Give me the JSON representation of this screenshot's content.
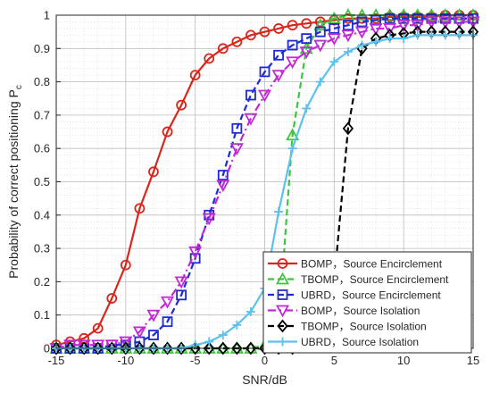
{
  "chart_data": {
    "type": "line",
    "xlabel": "SNR/dB",
    "ylabel": "Probability of correct positioning P",
    "ylabel_subscript": "c",
    "xlim": [
      -15,
      15
    ],
    "ylim": [
      0,
      1
    ],
    "xticks": [
      -15,
      -10,
      -5,
      0,
      5,
      10,
      15
    ],
    "yticks": [
      0,
      0.1,
      0.2,
      0.3,
      0.4,
      0.5,
      0.6,
      0.7,
      0.8,
      0.9,
      1
    ],
    "grid": true,
    "legend_position": "bottom-right",
    "x": [
      -15,
      -14,
      -13,
      -12,
      -11,
      -10,
      -9,
      -8,
      -7,
      -6,
      -5,
      -4,
      -3,
      -2,
      -1,
      0,
      1,
      2,
      3,
      4,
      5,
      6,
      7,
      8,
      9,
      10,
      11,
      12,
      13,
      14,
      15
    ],
    "series": [
      {
        "name": "BOMP，Source Encirclement",
        "color": "#d9261c",
        "marker": "circle",
        "dash": "solid",
        "values": [
          0.01,
          0.02,
          0.03,
          0.06,
          0.15,
          0.25,
          0.42,
          0.53,
          0.65,
          0.73,
          0.82,
          0.87,
          0.9,
          0.92,
          0.94,
          0.95,
          0.96,
          0.97,
          0.975,
          0.98,
          0.985,
          0.99,
          0.99,
          0.99,
          0.995,
          0.995,
          0.995,
          0.995,
          1.0,
          1.0,
          1.0
        ]
      },
      {
        "name": "TBOMP，Source Encirclement",
        "color": "#3ec43e",
        "marker": "triangle",
        "dash": "dash",
        "values": [
          0.0,
          0.0,
          0.0,
          0.0,
          0.0,
          0.0,
          0.0,
          0.0,
          0.0,
          0.0,
          0.0,
          0.0,
          0.0,
          0.0,
          0.0,
          0.01,
          0.06,
          0.64,
          0.9,
          0.97,
          0.99,
          1.0,
          1.0,
          1.0,
          1.0,
          1.0,
          1.0,
          1.0,
          1.0,
          1.0,
          1.0
        ]
      },
      {
        "name": "UBRD，Source Encirclement",
        "color": "#1f2bd4",
        "marker": "square",
        "dash": "dash",
        "values": [
          0.0,
          0.0,
          0.0,
          0.0,
          0.01,
          0.01,
          0.02,
          0.04,
          0.08,
          0.16,
          0.27,
          0.4,
          0.52,
          0.66,
          0.76,
          0.83,
          0.88,
          0.91,
          0.93,
          0.95,
          0.96,
          0.97,
          0.98,
          0.985,
          0.99,
          0.99,
          0.99,
          0.99,
          0.99,
          0.99,
          0.99
        ]
      },
      {
        "name": "BOMP，Source  Isolation",
        "color": "#c228d6",
        "marker": "triangle-down",
        "dash": "dashdot",
        "values": [
          0.0,
          0.01,
          0.01,
          0.01,
          0.01,
          0.02,
          0.05,
          0.1,
          0.14,
          0.2,
          0.29,
          0.39,
          0.49,
          0.6,
          0.69,
          0.76,
          0.82,
          0.86,
          0.89,
          0.91,
          0.93,
          0.94,
          0.95,
          0.96,
          0.96,
          0.97,
          0.97,
          0.98,
          0.98,
          0.98,
          0.98
        ]
      },
      {
        "name": "TBOMP，Source  Isolation",
        "color": "#000000",
        "marker": "diamond",
        "dash": "dash",
        "values": [
          0.0,
          0.0,
          0.0,
          0.0,
          0.0,
          0.0,
          0.0,
          0.0,
          0.0,
          0.0,
          0.0,
          0.0,
          0.0,
          0.0,
          0.0,
          0.0,
          0.0,
          0.0,
          0.01,
          0.04,
          0.2,
          0.66,
          0.9,
          0.93,
          0.94,
          0.945,
          0.95,
          0.95,
          0.95,
          0.95,
          0.95
        ]
      },
      {
        "name": "UBRD，Source  Isolation",
        "color": "#5bc1ee",
        "marker": "plus",
        "dash": "solid",
        "values": [
          0.0,
          0.0,
          0.0,
          0.0,
          0.0,
          0.0,
          0.0,
          0.0,
          0.0,
          0.0,
          0.01,
          0.02,
          0.04,
          0.07,
          0.11,
          0.18,
          0.41,
          0.6,
          0.72,
          0.8,
          0.86,
          0.89,
          0.91,
          0.92,
          0.93,
          0.93,
          0.94,
          0.94,
          0.94,
          0.94,
          0.94
        ]
      }
    ]
  }
}
